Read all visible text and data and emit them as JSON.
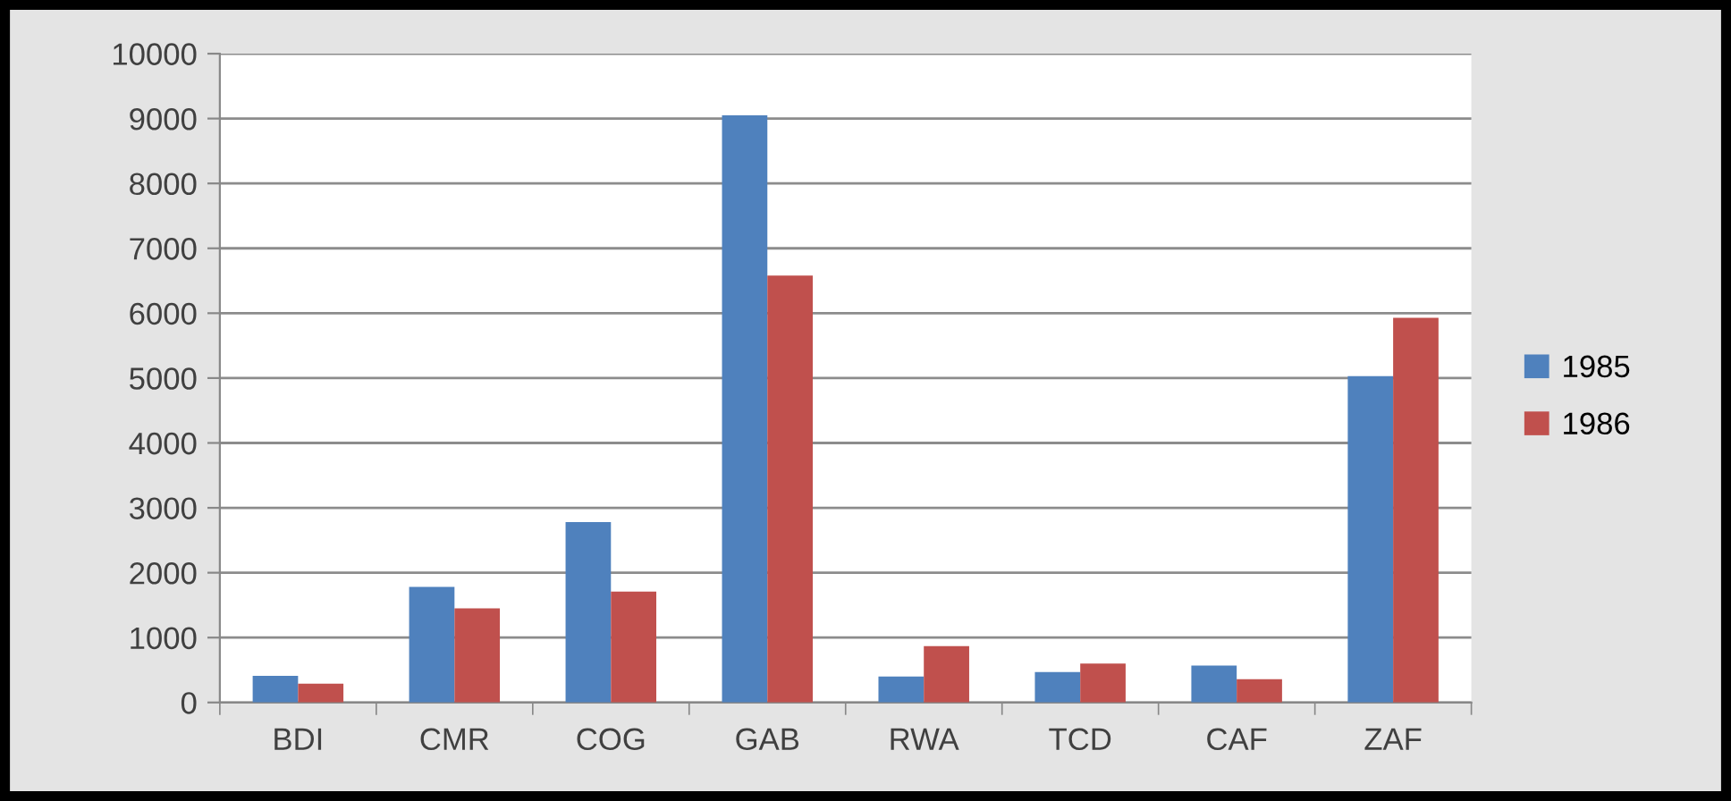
{
  "chart_data": {
    "type": "bar",
    "categories": [
      "BDI",
      "CMR",
      "COG",
      "GAB",
      "RWA",
      "TCD",
      "CAF",
      "ZAF"
    ],
    "series": [
      {
        "name": "1985",
        "color": "#4f81bd",
        "values": [
          410,
          1780,
          2780,
          9050,
          400,
          470,
          570,
          5030
        ]
      },
      {
        "name": "1986",
        "color": "#c0504d",
        "values": [
          290,
          1450,
          1710,
          6580,
          870,
          600,
          360,
          5930
        ]
      }
    ],
    "ylim": [
      0,
      10000
    ],
    "yticks": [
      0,
      1000,
      2000,
      3000,
      4000,
      5000,
      6000,
      7000,
      8000,
      9000,
      10000
    ],
    "grid": "y",
    "legend": "right"
  }
}
